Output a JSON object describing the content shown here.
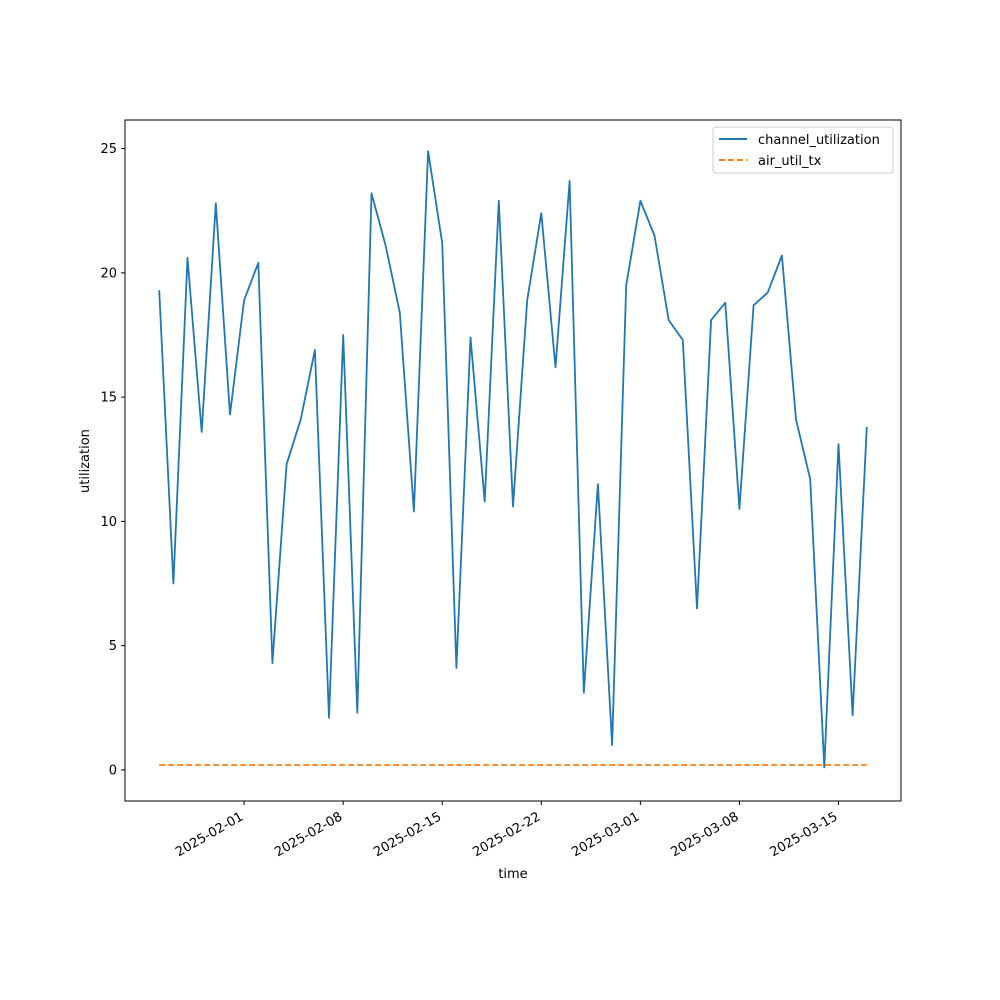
{
  "chart_data": {
    "type": "line",
    "title": "",
    "xlabel": "time",
    "ylabel": "utilization",
    "x_axis_type": "date",
    "xlim": [
      "2025-01-23T14:00",
      "2025-03-19T10:00"
    ],
    "ylim": [
      -1.25,
      26.15
    ],
    "x_ticks": [
      "2025-02-01",
      "2025-02-08",
      "2025-02-15",
      "2025-02-22",
      "2025-03-01",
      "2025-03-08",
      "2025-03-15"
    ],
    "y_ticks": [
      0,
      5,
      10,
      15,
      20,
      25
    ],
    "grid": false,
    "legend_position": "top-right",
    "x": [
      "2025-01-26",
      "2025-01-27",
      "2025-01-28",
      "2025-01-29",
      "2025-01-30",
      "2025-01-31",
      "2025-02-01",
      "2025-02-02",
      "2025-02-03",
      "2025-02-04",
      "2025-02-05",
      "2025-02-06",
      "2025-02-07",
      "2025-02-08",
      "2025-02-09",
      "2025-02-10",
      "2025-02-11",
      "2025-02-12",
      "2025-02-13",
      "2025-02-14",
      "2025-02-15",
      "2025-02-16",
      "2025-02-17",
      "2025-02-18",
      "2025-02-19",
      "2025-02-20",
      "2025-02-21",
      "2025-02-22",
      "2025-02-23",
      "2025-02-24",
      "2025-02-25",
      "2025-02-26",
      "2025-02-27",
      "2025-02-28",
      "2025-03-01",
      "2025-03-02",
      "2025-03-03",
      "2025-03-04",
      "2025-03-05",
      "2025-03-06",
      "2025-03-07",
      "2025-03-08",
      "2025-03-09",
      "2025-03-10",
      "2025-03-11",
      "2025-03-12",
      "2025-03-13",
      "2025-03-14",
      "2025-03-15",
      "2025-03-16",
      "2025-03-17"
    ],
    "series": [
      {
        "name": "channel_utilization",
        "color": "#1f77b4",
        "dash": "solid",
        "values": [
          19.3,
          7.5,
          20.6,
          13.6,
          22.8,
          14.3,
          18.9,
          20.4,
          4.3,
          12.3,
          14.1,
          16.9,
          2.1,
          17.5,
          2.3,
          23.2,
          21.1,
          18.4,
          10.4,
          24.9,
          21.2,
          4.1,
          17.4,
          10.8,
          22.9,
          10.6,
          18.9,
          22.4,
          16.2,
          23.7,
          3.1,
          11.5,
          1.0,
          19.5,
          22.9,
          21.5,
          18.1,
          17.3,
          6.5,
          18.1,
          18.8,
          10.5,
          18.7,
          19.2,
          20.7,
          14.1,
          11.7,
          0.1,
          13.1,
          2.2,
          13.8
        ]
      },
      {
        "name": "air_util_tx",
        "color": "#ff7f0e",
        "dash": "dashed",
        "values": [
          0.2,
          0.2,
          0.2,
          0.2,
          0.2,
          0.2,
          0.2,
          0.2,
          0.2,
          0.2,
          0.2,
          0.2,
          0.2,
          0.2,
          0.2,
          0.2,
          0.2,
          0.2,
          0.2,
          0.2,
          0.2,
          0.2,
          0.2,
          0.2,
          0.2,
          0.2,
          0.2,
          0.2,
          0.2,
          0.2,
          0.2,
          0.2,
          0.2,
          0.2,
          0.2,
          0.2,
          0.2,
          0.2,
          0.2,
          0.2,
          0.2,
          0.2,
          0.2,
          0.2,
          0.2,
          0.2,
          0.2,
          0.2,
          0.2,
          0.2,
          0.2
        ]
      }
    ]
  }
}
